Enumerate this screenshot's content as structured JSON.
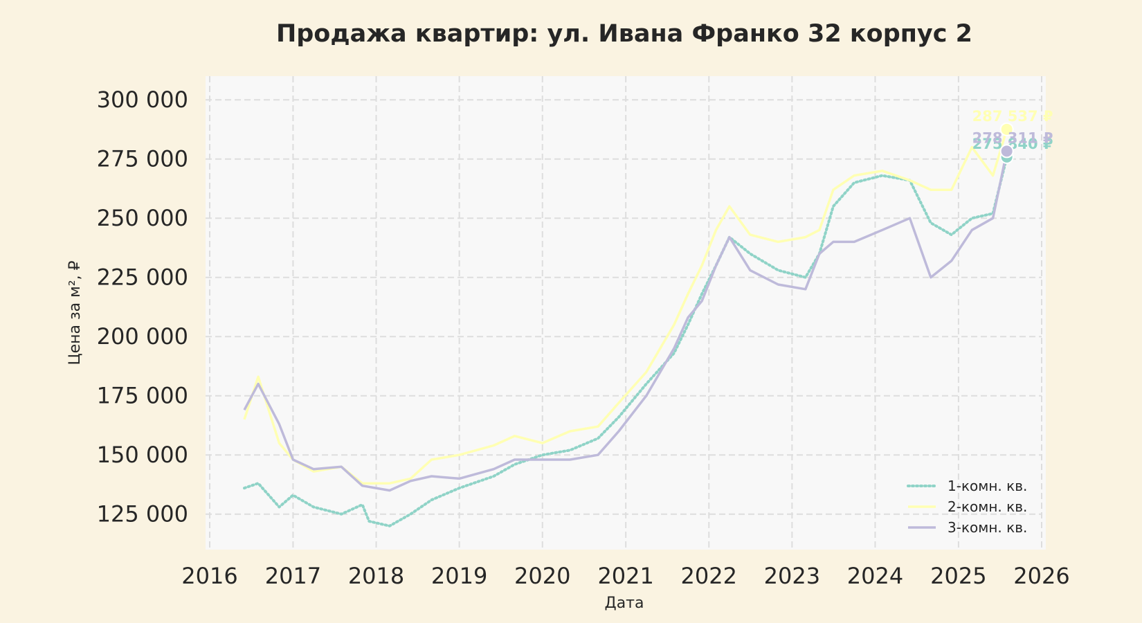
{
  "chart_data": {
    "type": "line",
    "title": "Продажа квартир: ул. Ивана Франко 32 корпус 2",
    "xlabel": "Дата",
    "ylabel": "Цена за м², ₽",
    "x_ticks": [
      "2016",
      "2017",
      "2018",
      "2019",
      "2020",
      "2021",
      "2022",
      "2023",
      "2024",
      "2025",
      "2026"
    ],
    "y_ticks": [
      "125 000",
      "150 000",
      "175 000",
      "200 000",
      "225 000",
      "250 000",
      "275 000",
      "300 000"
    ],
    "xlim": [
      "2016-01-01",
      "2026-01-01"
    ],
    "ylim": [
      110000,
      310000
    ],
    "grid": true,
    "legend_position": "lower-right",
    "colors": {
      "background": "#faf3e1",
      "plot_background": "#f8f8f8",
      "grid": "#dddddd"
    },
    "series": [
      {
        "name": "1-комн. кв.",
        "color": "#8fd3c7",
        "style": "dotted",
        "end_label": "275 840 ₽",
        "end_value": 275840,
        "points": [
          [
            "2016-06-01",
            136000
          ],
          [
            "2016-08-01",
            138000
          ],
          [
            "2016-11-01",
            128000
          ],
          [
            "2017-01-01",
            133000
          ],
          [
            "2017-04-01",
            128000
          ],
          [
            "2017-08-01",
            125000
          ],
          [
            "2017-11-01",
            129000
          ],
          [
            "2017-12-01",
            122000
          ],
          [
            "2018-03-01",
            120000
          ],
          [
            "2018-06-01",
            125000
          ],
          [
            "2018-09-01",
            131000
          ],
          [
            "2019-01-01",
            136000
          ],
          [
            "2019-06-01",
            141000
          ],
          [
            "2019-09-01",
            146000
          ],
          [
            "2020-01-01",
            150000
          ],
          [
            "2020-05-01",
            152000
          ],
          [
            "2020-09-01",
            157000
          ],
          [
            "2020-12-01",
            166000
          ],
          [
            "2021-04-01",
            180000
          ],
          [
            "2021-08-01",
            193000
          ],
          [
            "2021-10-01",
            205000
          ],
          [
            "2021-12-01",
            218000
          ],
          [
            "2022-02-01",
            230000
          ],
          [
            "2022-04-01",
            242000
          ],
          [
            "2022-07-01",
            235000
          ],
          [
            "2022-11-01",
            228000
          ],
          [
            "2023-03-01",
            225000
          ],
          [
            "2023-05-01",
            235000
          ],
          [
            "2023-07-01",
            255000
          ],
          [
            "2023-10-01",
            265000
          ],
          [
            "2024-02-01",
            268000
          ],
          [
            "2024-06-01",
            266000
          ],
          [
            "2024-09-01",
            248000
          ],
          [
            "2024-12-01",
            243000
          ],
          [
            "2025-03-01",
            250000
          ],
          [
            "2025-06-01",
            252000
          ],
          [
            "2025-08-01",
            275840
          ]
        ]
      },
      {
        "name": "2-комн. кв.",
        "color": "#ffffb3",
        "style": "solid",
        "end_label": "287 537 ₽",
        "end_value": 287537,
        "points": [
          [
            "2016-06-01",
            165000
          ],
          [
            "2016-08-01",
            183000
          ],
          [
            "2016-11-01",
            155000
          ],
          [
            "2017-01-01",
            148000
          ],
          [
            "2017-04-01",
            143000
          ],
          [
            "2017-08-01",
            145000
          ],
          [
            "2017-11-01",
            138000
          ],
          [
            "2018-03-01",
            138000
          ],
          [
            "2018-06-01",
            140000
          ],
          [
            "2018-09-01",
            148000
          ],
          [
            "2019-01-01",
            150000
          ],
          [
            "2019-06-01",
            154000
          ],
          [
            "2019-09-01",
            158000
          ],
          [
            "2020-01-01",
            155000
          ],
          [
            "2020-05-01",
            160000
          ],
          [
            "2020-09-01",
            162000
          ],
          [
            "2020-12-01",
            172000
          ],
          [
            "2021-04-01",
            185000
          ],
          [
            "2021-08-01",
            205000
          ],
          [
            "2021-10-01",
            218000
          ],
          [
            "2021-12-01",
            230000
          ],
          [
            "2022-02-01",
            245000
          ],
          [
            "2022-04-01",
            255000
          ],
          [
            "2022-07-01",
            243000
          ],
          [
            "2022-11-01",
            240000
          ],
          [
            "2023-03-01",
            242000
          ],
          [
            "2023-05-01",
            245000
          ],
          [
            "2023-07-01",
            262000
          ],
          [
            "2023-10-01",
            268000
          ],
          [
            "2024-02-01",
            270000
          ],
          [
            "2024-06-01",
            266000
          ],
          [
            "2024-09-01",
            262000
          ],
          [
            "2024-12-01",
            262000
          ],
          [
            "2025-03-01",
            280000
          ],
          [
            "2025-06-01",
            268000
          ],
          [
            "2025-08-01",
            287537
          ]
        ]
      },
      {
        "name": "3-комн. кв.",
        "color": "#bebada",
        "style": "solid",
        "end_label": "278 311 ₽",
        "end_value": 278311,
        "points": [
          [
            "2016-06-01",
            169000
          ],
          [
            "2016-08-01",
            180000
          ],
          [
            "2016-11-01",
            163000
          ],
          [
            "2017-01-01",
            148000
          ],
          [
            "2017-04-01",
            144000
          ],
          [
            "2017-08-01",
            145000
          ],
          [
            "2017-11-01",
            137000
          ],
          [
            "2018-03-01",
            135000
          ],
          [
            "2018-06-01",
            139000
          ],
          [
            "2018-09-01",
            141000
          ],
          [
            "2019-01-01",
            140000
          ],
          [
            "2019-06-01",
            144000
          ],
          [
            "2019-09-01",
            148000
          ],
          [
            "2020-01-01",
            148000
          ],
          [
            "2020-05-01",
            148000
          ],
          [
            "2020-09-01",
            150000
          ],
          [
            "2020-12-01",
            160000
          ],
          [
            "2021-04-01",
            175000
          ],
          [
            "2021-08-01",
            195000
          ],
          [
            "2021-10-01",
            208000
          ],
          [
            "2021-12-01",
            215000
          ],
          [
            "2022-02-01",
            230000
          ],
          [
            "2022-04-01",
            242000
          ],
          [
            "2022-07-01",
            228000
          ],
          [
            "2022-11-01",
            222000
          ],
          [
            "2023-03-01",
            220000
          ],
          [
            "2023-05-01",
            235000
          ],
          [
            "2023-07-01",
            240000
          ],
          [
            "2023-10-01",
            240000
          ],
          [
            "2024-02-01",
            245000
          ],
          [
            "2024-06-01",
            250000
          ],
          [
            "2024-09-01",
            225000
          ],
          [
            "2024-12-01",
            232000
          ],
          [
            "2025-03-01",
            245000
          ],
          [
            "2025-06-01",
            250000
          ],
          [
            "2025-08-01",
            278311
          ]
        ]
      }
    ]
  }
}
